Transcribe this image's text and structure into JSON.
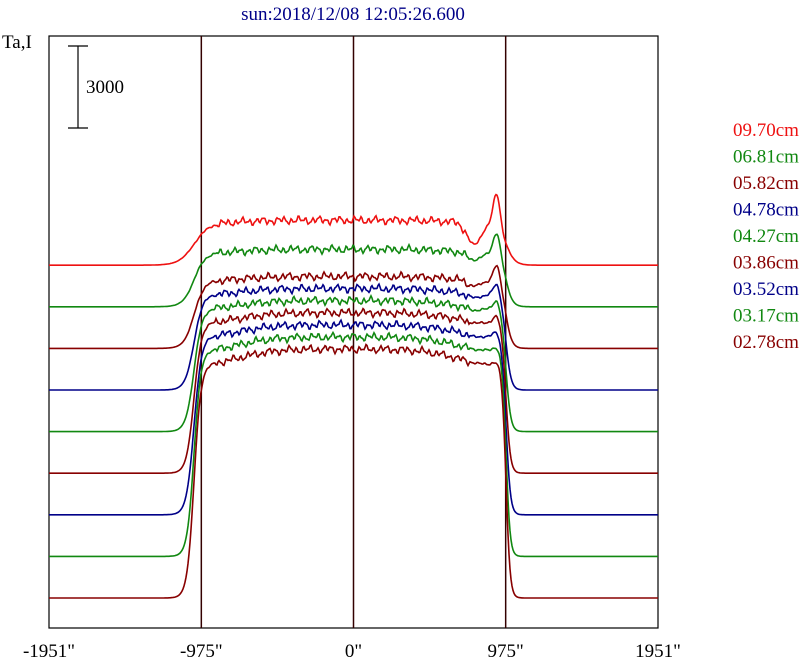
{
  "chart_data": {
    "type": "line",
    "title": "sun:2018/12/08 12:05:26.600",
    "ylabel": "Ta,I",
    "scale_bar_label": "3000",
    "x_ticks": [
      {
        "value": -1951,
        "label": "-1951\""
      },
      {
        "value": -975,
        "label": "-975\""
      },
      {
        "value": 0,
        "label": "0\""
      },
      {
        "value": 975,
        "label": "975\""
      },
      {
        "value": 1951,
        "label": "1951\""
      }
    ],
    "xlim": [
      -1951,
      1951
    ],
    "vertical_markers": [
      -975,
      0,
      975
    ],
    "grid": false,
    "legend_position": "right",
    "series": [
      {
        "name": "09.70cm",
        "color": "#ee1111",
        "lift": 32,
        "core": 2.15,
        "sharpness": 24,
        "spike": 41,
        "dip": 23
      },
      {
        "name": "06.81cm",
        "color": "#118811",
        "lift": 15,
        "core": 2.0,
        "sharpness": 18,
        "spike": 26,
        "dip": 8
      },
      {
        "name": "05.82cm",
        "color": "#880000",
        "lift": 0,
        "core": 2.0,
        "sharpness": 16,
        "spike": 20,
        "dip": 6
      },
      {
        "name": "04.78cm",
        "color": "#000088",
        "lift": 0,
        "core": 2.0,
        "sharpness": 14,
        "spike": 14,
        "dip": 4
      },
      {
        "name": "04.27cm",
        "color": "#118811",
        "lift": 0,
        "core": 2.0,
        "sharpness": 13,
        "spike": 11,
        "dip": 3
      },
      {
        "name": "03.86cm",
        "color": "#880000",
        "lift": 0,
        "core": 2.0,
        "sharpness": 12,
        "spike": 9,
        "dip": 2
      },
      {
        "name": "03.52cm",
        "color": "#000088",
        "lift": 0,
        "core": 2.0,
        "sharpness": 12,
        "spike": 7,
        "dip": 2
      },
      {
        "name": "03.17cm",
        "color": "#118811",
        "lift": 0,
        "core": 2.0,
        "sharpness": 11,
        "spike": 5,
        "dip": 1
      },
      {
        "name": "02.78cm",
        "color": "#880000",
        "lift": 0,
        "core": 2.0,
        "sharpness": 11,
        "spike": 4,
        "dip": 1
      }
    ],
    "colors": {
      "axis": "#000000",
      "marker": "#330000",
      "title": "#000088"
    }
  }
}
